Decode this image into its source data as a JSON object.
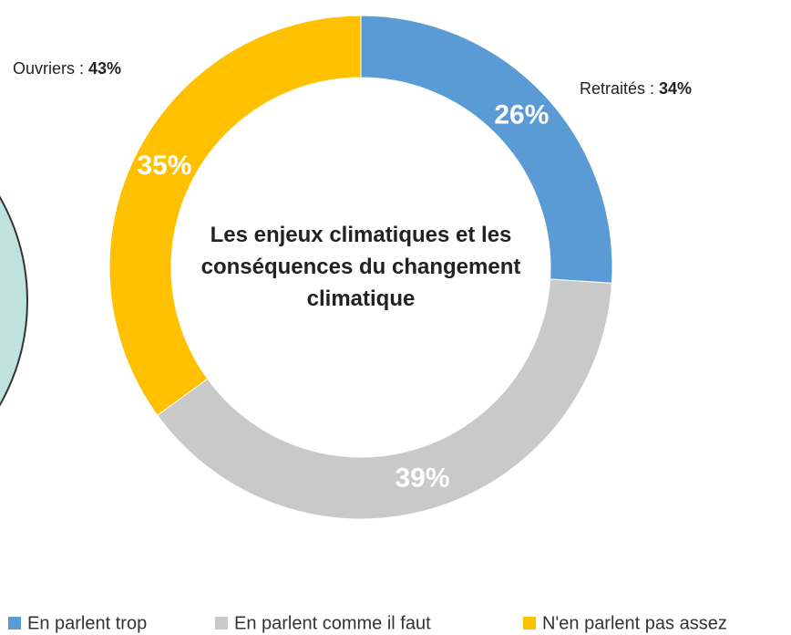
{
  "chart_data": {
    "type": "donut",
    "title": "Les enjeux climatiques et les conséquences du changement climatique",
    "categories": [
      "En parlent trop",
      "En parlent comme il faut",
      "N'en parlent pas assez"
    ],
    "values": [
      26,
      39,
      35
    ],
    "value_labels": [
      "26%",
      "39%",
      "35%"
    ],
    "colors": [
      "#5b9bd5",
      "#c9c9c9",
      "#ffc000"
    ],
    "legend": "bottom",
    "annotations": [
      {
        "text": "Retraités :",
        "value": 34,
        "value_label": "34%"
      },
      {
        "text": "Ouvriers :",
        "value": 43,
        "value_label": "43%"
      }
    ]
  }
}
